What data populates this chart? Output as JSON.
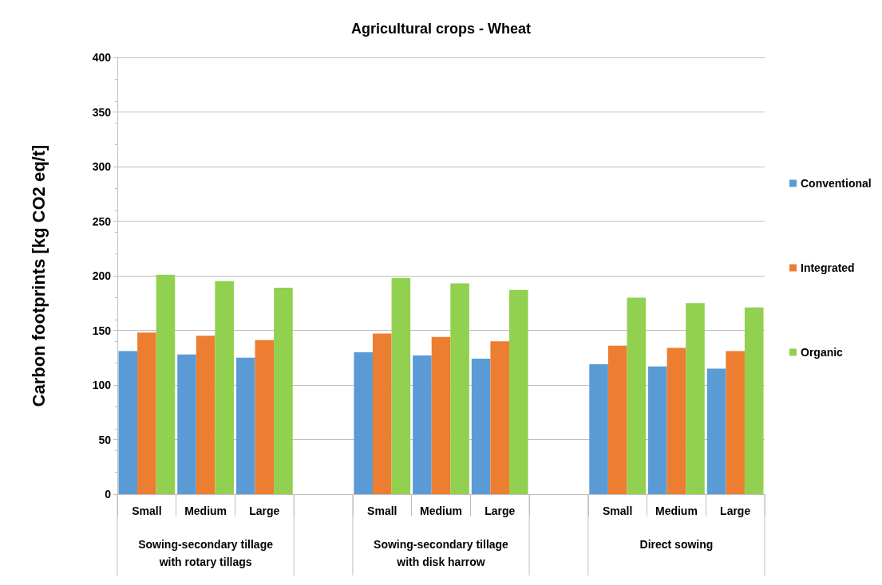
{
  "chart_data": {
    "type": "bar",
    "title": "Agricultural crops - Wheat",
    "ylabel": "Carbon footprints [kg CO2 eq/t]",
    "categories": [
      "Small",
      "Medium",
      "Large",
      null,
      "Small",
      "Medium",
      "Large",
      null,
      "Small",
      "Medium",
      "Large"
    ],
    "annotations": [
      "Sowing-secondary tillage\nwith rotary tillags",
      "Sowing-secondary tillage\nwith disk harrow",
      "Direct sowing"
    ],
    "series": [
      {
        "name": "Conventional",
        "color": "#5b9bd5",
        "values": [
          131,
          128,
          125,
          null,
          130,
          127,
          124,
          null,
          119,
          117,
          115
        ]
      },
      {
        "name": "Integrated",
        "color": "#ed7d31",
        "values": [
          148,
          145,
          141,
          null,
          147,
          144,
          140,
          null,
          136,
          134,
          131
        ]
      },
      {
        "name": "Organic",
        "color": "#92d050",
        "values": [
          201,
          195,
          189,
          null,
          198,
          193,
          187,
          null,
          180,
          175,
          171
        ]
      }
    ],
    "ylim": [
      0,
      400
    ],
    "yticks": [
      0,
      50,
      100,
      150,
      200,
      250,
      300,
      350,
      400
    ],
    "grid": "y",
    "legend": "right"
  }
}
